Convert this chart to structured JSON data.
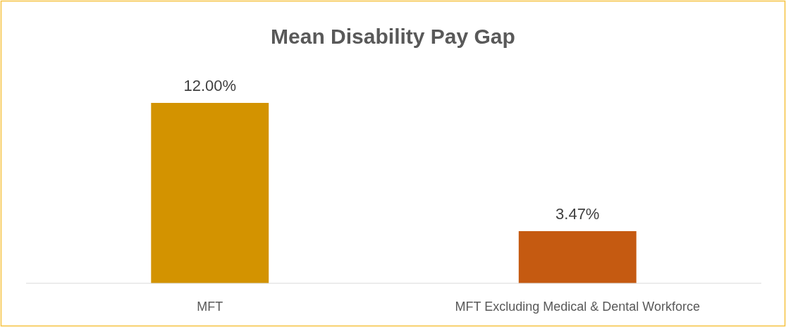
{
  "chart_data": {
    "type": "bar",
    "title": "Mean Disability Pay Gap",
    "categories": [
      "MFT",
      "MFT Excluding Medical & Dental Workforce"
    ],
    "values": [
      12.0,
      3.47
    ],
    "colors": [
      "#d39300",
      "#c55a11"
    ],
    "value_labels": [
      "12.00%",
      "3.47%"
    ],
    "grid": false
  }
}
